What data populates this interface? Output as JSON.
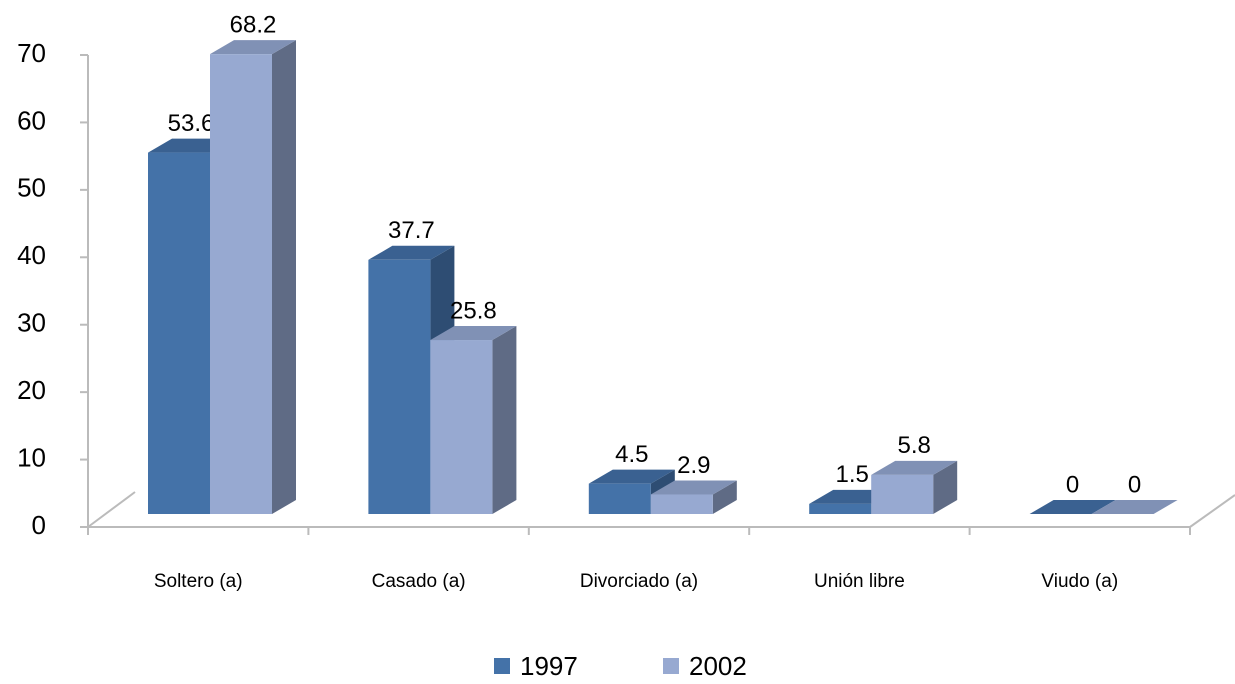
{
  "chart_data": {
    "type": "bar3d",
    "categories": [
      "Soltero (a)",
      "Casado (a)",
      "Divorciado (a)",
      "Unión libre",
      "Viudo (a)"
    ],
    "series": [
      {
        "name": "1997",
        "color": "#4472a8",
        "values": [
          53.6,
          37.7,
          4.5,
          1.5,
          0
        ]
      },
      {
        "name": "2002",
        "color": "#97a9d1",
        "values": [
          68.2,
          25.8,
          2.9,
          5.8,
          0
        ]
      }
    ],
    "ylim": [
      0,
      70
    ],
    "yticks": [
      0,
      10,
      20,
      30,
      40,
      50,
      60,
      70
    ],
    "legend": "bottom"
  }
}
